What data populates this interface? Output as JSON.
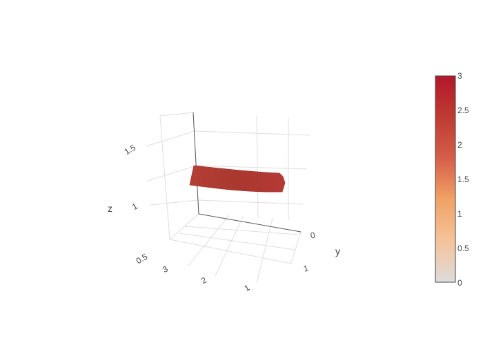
{
  "chart_data": {
    "type": "surface",
    "title": "",
    "scene": {
      "xaxis": {
        "title": "",
        "ticks": [
          "1",
          "2",
          "3"
        ],
        "range": [
          1,
          3
        ]
      },
      "yaxis": {
        "title": "y",
        "ticks": [
          "0",
          "1"
        ],
        "range": [
          0,
          1
        ]
      },
      "zaxis": {
        "title": "z",
        "ticks": [
          "0.5",
          "1",
          "1.5"
        ],
        "range": [
          0.5,
          1.5
        ]
      },
      "grid": true
    },
    "surface": {
      "name": "surface",
      "description": "thin curved ribbon",
      "x_range": [
        1,
        3
      ],
      "y_range": [
        0,
        0.3
      ],
      "z_range": [
        1.05,
        1.2
      ],
      "color_value": 2.5,
      "color_hex": "#b13a33"
    },
    "colorbar": {
      "min": 0,
      "max": 3,
      "ticks": [
        "0",
        "0.5",
        "1",
        "1.5",
        "2",
        "2.5",
        "3"
      ],
      "colorscale": [
        "#dcdcdc",
        "#f5c39a",
        "#f0a265",
        "#d55f4a",
        "#bf3b32",
        "#b2182b"
      ],
      "placement": "right"
    }
  }
}
